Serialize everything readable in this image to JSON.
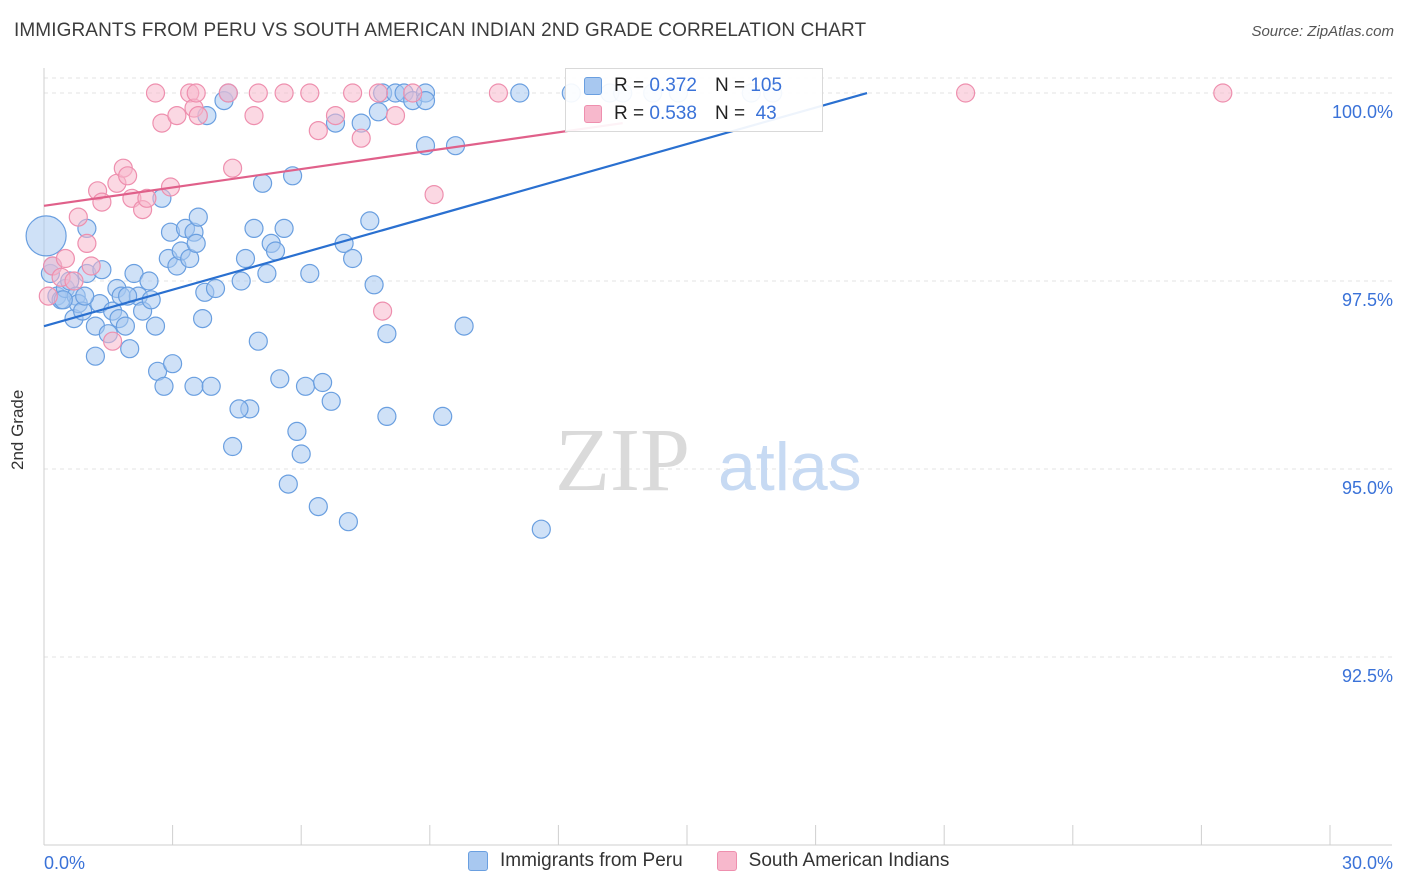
{
  "title": "IMMIGRANTS FROM PERU VS SOUTH AMERICAN INDIAN 2ND GRADE CORRELATION CHART",
  "source": "Source: ZipAtlas.com",
  "watermark": {
    "zip": "ZIP",
    "atlas": "atlas"
  },
  "colors": {
    "blue_fill": "#a8c8f0",
    "blue_stroke": "#6a9fe0",
    "blue_line": "#2a70d0",
    "pink_fill": "#f7b8cc",
    "pink_stroke": "#ee8fae",
    "pink_line": "#e0608a",
    "axis_text": "#3a72d8",
    "grid": "#e3e3e3"
  },
  "legend": {
    "rows": [
      {
        "r_label": "R =",
        "r_value": "0.372",
        "n_label": "N =",
        "n_value": "105"
      },
      {
        "r_label": "R =",
        "r_value": "0.538",
        "n_label": "N =",
        "n_value": "43"
      }
    ]
  },
  "bottom_legend": [
    "Immigrants from Peru",
    "South American Indians"
  ],
  "chart_data": {
    "type": "scatter",
    "xlabel": "",
    "ylabel": "2nd Grade",
    "xlim": [
      0,
      30
    ],
    "ylim": [
      90.0,
      100.2
    ],
    "x_tick_labels": [
      "0.0%",
      "30.0%"
    ],
    "y_ticks": [
      92.5,
      95.0,
      97.5,
      100.0
    ],
    "y_tick_labels": [
      "92.5%",
      "95.0%",
      "97.5%",
      "100.0%"
    ],
    "grid": true,
    "series": [
      {
        "name": "Immigrants from Peru",
        "color": "blue",
        "trend": {
          "x": [
            0.0,
            19.2
          ],
          "y": [
            96.9,
            100.0
          ]
        },
        "points": [
          [
            0.05,
            98.1
          ],
          [
            0.15,
            97.6
          ],
          [
            0.2,
            97.7
          ],
          [
            0.3,
            97.3
          ],
          [
            0.4,
            97.25
          ],
          [
            0.5,
            97.4
          ],
          [
            0.6,
            97.5
          ],
          [
            0.7,
            97.0
          ],
          [
            0.75,
            97.3
          ],
          [
            0.8,
            97.2
          ],
          [
            0.9,
            97.1
          ],
          [
            1.0,
            98.2
          ],
          [
            1.0,
            97.6
          ],
          [
            1.2,
            96.5
          ],
          [
            1.2,
            96.9
          ],
          [
            1.35,
            97.65
          ],
          [
            1.3,
            97.2
          ],
          [
            1.5,
            96.8
          ],
          [
            1.6,
            97.1
          ],
          [
            1.7,
            97.4
          ],
          [
            1.75,
            97.0
          ],
          [
            1.8,
            97.3
          ],
          [
            1.9,
            96.9
          ],
          [
            2.0,
            96.6
          ],
          [
            2.1,
            97.6
          ],
          [
            2.2,
            97.3
          ],
          [
            2.3,
            97.1
          ],
          [
            2.45,
            97.5
          ],
          [
            2.5,
            97.25
          ],
          [
            2.6,
            96.9
          ],
          [
            2.65,
            96.3
          ],
          [
            2.75,
            98.6
          ],
          [
            2.8,
            96.1
          ],
          [
            2.9,
            97.8
          ],
          [
            2.95,
            98.15
          ],
          [
            3.0,
            96.4
          ],
          [
            3.1,
            97.7
          ],
          [
            3.2,
            97.9
          ],
          [
            3.3,
            98.2
          ],
          [
            3.4,
            97.8
          ],
          [
            3.5,
            98.15
          ],
          [
            3.5,
            96.1
          ],
          [
            3.6,
            98.35
          ],
          [
            3.7,
            97.0
          ],
          [
            3.75,
            97.35
          ],
          [
            3.8,
            99.7
          ],
          [
            3.9,
            96.1
          ],
          [
            4.0,
            97.4
          ],
          [
            4.2,
            99.9
          ],
          [
            4.3,
            100.0
          ],
          [
            4.4,
            95.3
          ],
          [
            4.6,
            97.5
          ],
          [
            4.7,
            97.8
          ],
          [
            4.8,
            95.8
          ],
          [
            4.9,
            98.2
          ],
          [
            5.0,
            96.7
          ],
          [
            5.1,
            98.8
          ],
          [
            5.2,
            97.6
          ],
          [
            5.3,
            98.0
          ],
          [
            5.4,
            97.9
          ],
          [
            5.5,
            96.2
          ],
          [
            5.6,
            98.2
          ],
          [
            5.7,
            94.8
          ],
          [
            5.8,
            98.9
          ],
          [
            5.9,
            95.5
          ],
          [
            6.0,
            95.2
          ],
          [
            6.1,
            96.1
          ],
          [
            6.2,
            97.6
          ],
          [
            6.4,
            94.5
          ],
          [
            6.5,
            96.15
          ],
          [
            6.7,
            95.9
          ],
          [
            6.8,
            99.6
          ],
          [
            7.0,
            98.0
          ],
          [
            7.1,
            94.3
          ],
          [
            7.2,
            97.8
          ],
          [
            7.4,
            99.6
          ],
          [
            7.6,
            98.3
          ],
          [
            7.7,
            97.45
          ],
          [
            7.8,
            99.75
          ],
          [
            7.9,
            100.0
          ],
          [
            8.0,
            96.8
          ],
          [
            8.2,
            100.0
          ],
          [
            8.4,
            100.0
          ],
          [
            8.6,
            99.9
          ],
          [
            8.9,
            100.0
          ],
          [
            8.9,
            99.3
          ],
          [
            9.3,
            95.7
          ],
          [
            9.6,
            99.3
          ],
          [
            9.8,
            96.9
          ],
          [
            11.1,
            100.0
          ],
          [
            11.6,
            94.2
          ],
          [
            12.3,
            100.0
          ],
          [
            13.2,
            100.0
          ],
          [
            13.5,
            100.0
          ],
          [
            14.2,
            100.0
          ],
          [
            14.8,
            100.0
          ],
          [
            16.5,
            100.0
          ],
          [
            17.0,
            100.0
          ],
          [
            8.0,
            95.7
          ],
          [
            8.9,
            99.9
          ],
          [
            0.45,
            97.25
          ],
          [
            1.95,
            97.3
          ],
          [
            3.55,
            98.0
          ],
          [
            4.55,
            95.8
          ],
          [
            0.95,
            97.3
          ]
        ]
      },
      {
        "name": "South American Indians",
        "color": "pink",
        "trend": {
          "x": [
            0.0,
            13.5
          ],
          "y": [
            98.5,
            99.6
          ]
        },
        "points": [
          [
            0.1,
            97.3
          ],
          [
            0.2,
            97.7
          ],
          [
            0.4,
            97.55
          ],
          [
            0.5,
            97.8
          ],
          [
            0.7,
            97.5
          ],
          [
            0.8,
            98.35
          ],
          [
            1.0,
            98.0
          ],
          [
            1.1,
            97.7
          ],
          [
            1.25,
            98.7
          ],
          [
            1.35,
            98.55
          ],
          [
            1.6,
            96.7
          ],
          [
            1.7,
            98.8
          ],
          [
            1.85,
            99.0
          ],
          [
            1.95,
            98.9
          ],
          [
            2.05,
            98.6
          ],
          [
            2.3,
            98.45
          ],
          [
            2.4,
            98.6
          ],
          [
            2.6,
            100.0
          ],
          [
            2.75,
            99.6
          ],
          [
            2.95,
            98.75
          ],
          [
            3.1,
            99.7
          ],
          [
            3.4,
            100.0
          ],
          [
            3.5,
            99.8
          ],
          [
            3.55,
            100.0
          ],
          [
            3.6,
            99.7
          ],
          [
            4.3,
            100.0
          ],
          [
            4.4,
            99.0
          ],
          [
            4.9,
            99.7
          ],
          [
            5.0,
            100.0
          ],
          [
            5.6,
            100.0
          ],
          [
            6.2,
            100.0
          ],
          [
            6.4,
            99.5
          ],
          [
            6.8,
            99.7
          ],
          [
            7.2,
            100.0
          ],
          [
            7.4,
            99.4
          ],
          [
            7.8,
            100.0
          ],
          [
            8.2,
            99.7
          ],
          [
            8.6,
            100.0
          ],
          [
            9.1,
            98.65
          ],
          [
            7.9,
            97.1
          ],
          [
            10.6,
            100.0
          ],
          [
            21.5,
            100.0
          ],
          [
            27.5,
            100.0
          ]
        ]
      }
    ]
  }
}
